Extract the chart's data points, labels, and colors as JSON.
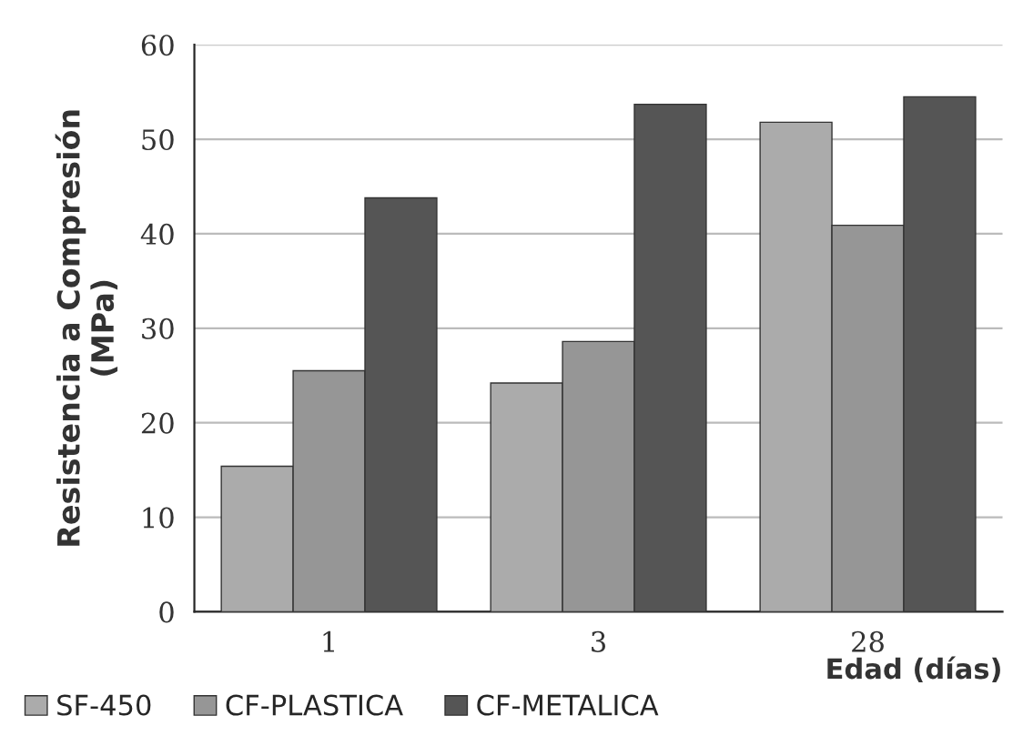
{
  "chart_data": {
    "type": "bar",
    "xlabel": "Edad (días)",
    "ylabel": "Resistencia a Compresión\n(MPa)",
    "categories": [
      "1",
      "3",
      "28"
    ],
    "series": [
      {
        "name": "SF-450",
        "color": "#ababab",
        "values": [
          15.4,
          24.2,
          51.8
        ]
      },
      {
        "name": "CF-PLASTICA",
        "color": "#969696",
        "values": [
          25.5,
          28.6,
          40.9
        ]
      },
      {
        "name": "CF-METALICA",
        "color": "#555555",
        "values": [
          43.8,
          53.7,
          54.5
        ]
      }
    ],
    "ylim": [
      0,
      60
    ],
    "yticks": [
      0,
      10,
      20,
      30,
      40,
      50,
      60
    ],
    "grid": "y",
    "legend": "bottom left"
  }
}
